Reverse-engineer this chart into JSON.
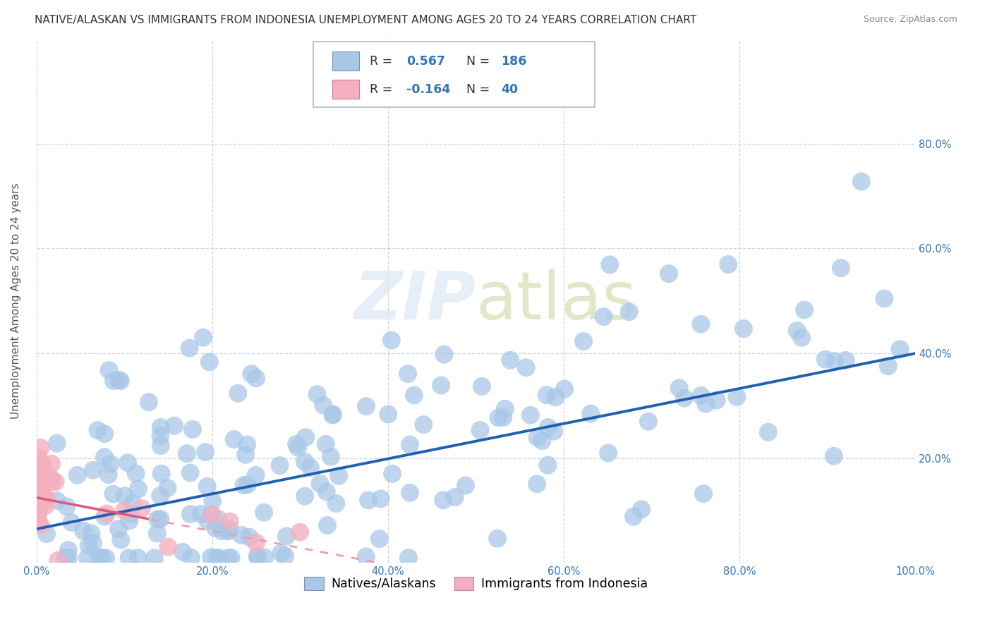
{
  "title": "NATIVE/ALASKAN VS IMMIGRANTS FROM INDONESIA UNEMPLOYMENT AMONG AGES 20 TO 24 YEARS CORRELATION CHART",
  "source": "Source: ZipAtlas.com",
  "ylabel": "Unemployment Among Ages 20 to 24 years",
  "xlim": [
    0,
    1.0
  ],
  "ylim": [
    0,
    1.0
  ],
  "xticks": [
    0.0,
    0.2,
    0.4,
    0.6,
    0.8,
    1.0
  ],
  "yticks": [
    0.2,
    0.4,
    0.6,
    0.8
  ],
  "xticklabels": [
    "0.0%",
    "20.0%",
    "40.0%",
    "60.0%",
    "80.0%",
    "100.0%"
  ],
  "yticklabels": [
    "20.0%",
    "40.0%",
    "60.0%",
    "80.0%"
  ],
  "native_color": "#a8c8e8",
  "immigrant_color": "#f4b0c0",
  "native_line_color": "#2060b0",
  "immigrant_line_color": "#e05878",
  "immigrant_line_dash_color": "#e8a0b0",
  "watermark": "ZIPatlas",
  "native_R": 0.567,
  "native_N": 186,
  "immigrant_R": -0.164,
  "immigrant_N": 40,
  "native_slope": 0.335,
  "native_intercept": 0.065,
  "immigrant_slope": -0.32,
  "immigrant_intercept": 0.125,
  "background_color": "#ffffff",
  "grid_color": "#c8d4e8",
  "title_fontsize": 11,
  "axis_label_fontsize": 11,
  "tick_fontsize": 10.5,
  "tick_color": "#3575b5",
  "legend_fontsize": 12.5
}
